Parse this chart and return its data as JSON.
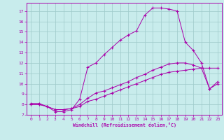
{
  "xlabel": "Windchill (Refroidissement éolien,°C)",
  "bg_color": "#c8ecec",
  "line_color": "#aa00aa",
  "xlim": [
    -0.5,
    23.5
  ],
  "ylim": [
    7.0,
    17.8
  ],
  "xticks": [
    0,
    1,
    2,
    3,
    4,
    5,
    6,
    7,
    8,
    9,
    10,
    11,
    12,
    13,
    14,
    15,
    16,
    17,
    18,
    19,
    20,
    21,
    22,
    23
  ],
  "yticks": [
    7,
    8,
    9,
    10,
    11,
    12,
    13,
    14,
    15,
    16,
    17
  ],
  "grid_color": "#9ec9c9",
  "curve1_x": [
    0,
    1,
    2,
    3,
    4,
    5,
    6,
    7,
    8,
    9,
    10,
    11,
    12,
    13,
    14,
    15,
    16,
    17,
    18,
    19,
    20,
    21,
    22,
    23
  ],
  "curve1_y": [
    8.0,
    8.0,
    7.8,
    7.5,
    7.5,
    7.6,
    7.8,
    8.3,
    8.5,
    8.8,
    9.1,
    9.4,
    9.7,
    10.0,
    10.3,
    10.6,
    10.9,
    11.1,
    11.2,
    11.3,
    11.4,
    11.5,
    11.5,
    11.5
  ],
  "curve2_x": [
    0,
    1,
    2,
    3,
    4,
    5,
    6,
    7,
    8,
    9,
    10,
    11,
    12,
    13,
    14,
    15,
    16,
    17,
    18,
    19,
    20,
    21,
    22,
    23
  ],
  "curve2_y": [
    8.0,
    8.0,
    7.8,
    7.5,
    7.5,
    7.6,
    8.0,
    8.6,
    9.1,
    9.3,
    9.6,
    9.9,
    10.2,
    10.6,
    10.9,
    11.3,
    11.6,
    11.9,
    12.0,
    12.0,
    11.8,
    11.5,
    9.5,
    10.2
  ],
  "curve3_x": [
    0,
    1,
    2,
    3,
    4,
    5,
    6,
    7,
    8,
    9,
    10,
    11,
    12,
    13,
    14,
    15,
    16,
    17,
    18,
    19,
    20,
    21,
    22,
    23
  ],
  "curve3_y": [
    8.1,
    8.1,
    7.8,
    7.3,
    7.3,
    7.5,
    8.5,
    11.6,
    12.0,
    12.8,
    13.5,
    14.2,
    14.7,
    15.1,
    16.6,
    17.3,
    17.3,
    17.2,
    17.0,
    14.0,
    13.2,
    12.0,
    9.5,
    10.0
  ]
}
